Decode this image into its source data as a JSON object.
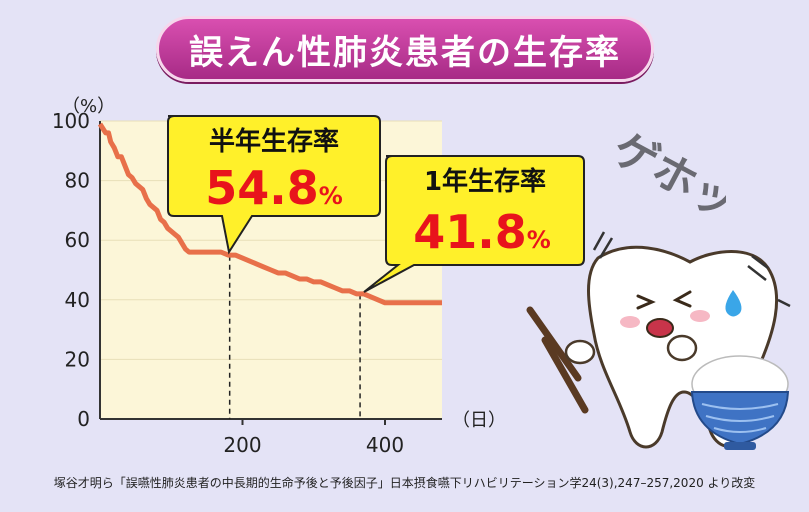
{
  "title": "誤えん性肺炎患者の生存率",
  "colors": {
    "line": "#e8704a",
    "plot_bg": "#fcf6d8",
    "callout_bg": "#fff02a",
    "value_red": "#e8141c",
    "banner": "#b8339a"
  },
  "chart_data": {
    "type": "line",
    "xlabel": "（日）",
    "ylabel": "（%）",
    "xlim": [
      0,
      480
    ],
    "ylim": [
      0,
      100
    ],
    "x_ticks": [
      200,
      400
    ],
    "y_ticks": [
      0,
      20,
      40,
      60,
      80,
      100
    ],
    "x": [
      0,
      8,
      12,
      15,
      20,
      25,
      30,
      35,
      40,
      45,
      50,
      55,
      60,
      65,
      70,
      75,
      80,
      85,
      90,
      95,
      100,
      105,
      110,
      115,
      120,
      125,
      130,
      140,
      150,
      160,
      170,
      180,
      190,
      200,
      210,
      220,
      230,
      240,
      250,
      260,
      270,
      280,
      290,
      300,
      310,
      320,
      330,
      340,
      350,
      360,
      365,
      370,
      380,
      390,
      400,
      410,
      420,
      430,
      440,
      450,
      460,
      470,
      480
    ],
    "y": [
      99,
      96,
      96,
      93,
      91,
      88,
      88,
      85,
      82,
      81,
      79,
      78,
      77,
      74,
      72,
      71,
      70,
      67,
      66,
      64,
      63,
      62,
      61,
      59,
      57,
      56,
      56,
      56,
      56,
      56,
      56,
      55,
      55,
      54,
      53,
      52,
      51,
      50,
      49,
      49,
      48,
      47,
      47,
      46,
      46,
      45,
      44,
      43,
      43,
      42,
      42,
      42,
      41,
      40,
      39,
      39,
      39,
      39,
      39,
      39,
      39,
      39,
      39
    ],
    "annotations": [
      {
        "label": "半年生存率",
        "value": "54.8",
        "unit": "%",
        "x": 182,
        "y": 54.8
      },
      {
        "label": "1年生存率",
        "value": "41.8",
        "unit": "%",
        "x": 365,
        "y": 41.8
      }
    ]
  },
  "illustration": {
    "sound_effect": "ゲホッ",
    "character": "tooth-character-coughing",
    "props": [
      "chopsticks",
      "rice-bowl"
    ]
  },
  "source_note": "塚谷才明ら「誤嚥性肺炎患者の中長期的生命予後と予後因子」日本摂食嚥下リハビリテーション学24(3),247–257,2020 より改変"
}
